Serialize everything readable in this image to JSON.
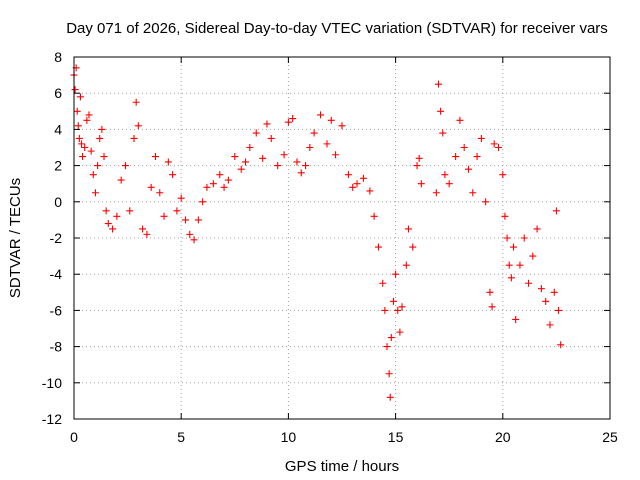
{
  "chart_data": {
    "type": "scatter",
    "title": "Day 071 of 2026, Sidereal Day-to-day VTEC variation (SDTVAR) for receiver vars",
    "xlabel": "GPS time / hours",
    "ylabel": "SDTVAR / TECUs",
    "xlim": [
      0,
      25
    ],
    "ylim": [
      -12,
      8
    ],
    "xticks": [
      0,
      5,
      10,
      15,
      20,
      25
    ],
    "yticks": [
      -12,
      -10,
      -8,
      -6,
      -4,
      -2,
      0,
      2,
      4,
      6,
      8
    ],
    "grid": true,
    "legend": "none",
    "marker": "plus",
    "color": "#ff0000",
    "series": [
      {
        "name": "SDTVAR",
        "points": [
          [
            0.0,
            7.0
          ],
          [
            0.05,
            6.2
          ],
          [
            0.1,
            7.4
          ],
          [
            0.15,
            5.0
          ],
          [
            0.2,
            4.2
          ],
          [
            0.25,
            3.5
          ],
          [
            0.3,
            5.8
          ],
          [
            0.35,
            3.2
          ],
          [
            0.4,
            2.5
          ],
          [
            0.5,
            3.0
          ],
          [
            0.6,
            4.5
          ],
          [
            0.7,
            4.8
          ],
          [
            0.8,
            2.8
          ],
          [
            0.9,
            1.5
          ],
          [
            1.0,
            0.5
          ],
          [
            1.1,
            2.0
          ],
          [
            1.2,
            3.5
          ],
          [
            1.3,
            4.0
          ],
          [
            1.4,
            2.5
          ],
          [
            1.5,
            -0.5
          ],
          [
            1.6,
            -1.2
          ],
          [
            1.8,
            -1.5
          ],
          [
            2.0,
            -0.8
          ],
          [
            2.2,
            1.2
          ],
          [
            2.4,
            2.0
          ],
          [
            2.6,
            -0.5
          ],
          [
            2.8,
            3.5
          ],
          [
            2.9,
            5.5
          ],
          [
            3.0,
            4.2
          ],
          [
            3.2,
            -1.5
          ],
          [
            3.4,
            -1.8
          ],
          [
            3.6,
            0.8
          ],
          [
            3.8,
            2.5
          ],
          [
            4.0,
            0.5
          ],
          [
            4.2,
            -0.8
          ],
          [
            4.4,
            2.2
          ],
          [
            4.6,
            1.5
          ],
          [
            4.8,
            -0.5
          ],
          [
            5.0,
            0.2
          ],
          [
            5.2,
            -1.0
          ],
          [
            5.4,
            -1.8
          ],
          [
            5.6,
            -2.1
          ],
          [
            5.8,
            -1.0
          ],
          [
            6.0,
            0.0
          ],
          [
            6.2,
            0.8
          ],
          [
            6.5,
            1.0
          ],
          [
            6.8,
            1.5
          ],
          [
            7.0,
            0.8
          ],
          [
            7.2,
            1.2
          ],
          [
            7.5,
            2.5
          ],
          [
            7.8,
            1.8
          ],
          [
            8.0,
            2.2
          ],
          [
            8.2,
            3.0
          ],
          [
            8.5,
            3.8
          ],
          [
            8.8,
            2.4
          ],
          [
            9.0,
            4.3
          ],
          [
            9.2,
            3.5
          ],
          [
            9.5,
            2.0
          ],
          [
            9.8,
            2.6
          ],
          [
            10.0,
            4.4
          ],
          [
            10.2,
            4.6
          ],
          [
            10.4,
            2.2
          ],
          [
            10.6,
            1.6
          ],
          [
            10.8,
            2.0
          ],
          [
            11.0,
            3.0
          ],
          [
            11.2,
            3.8
          ],
          [
            11.5,
            4.8
          ],
          [
            11.8,
            3.2
          ],
          [
            12.0,
            4.5
          ],
          [
            12.2,
            2.6
          ],
          [
            12.5,
            4.2
          ],
          [
            12.8,
            1.5
          ],
          [
            13.0,
            0.8
          ],
          [
            13.2,
            1.0
          ],
          [
            13.5,
            1.3
          ],
          [
            13.8,
            0.6
          ],
          [
            14.0,
            -0.8
          ],
          [
            14.2,
            -2.5
          ],
          [
            14.4,
            -4.5
          ],
          [
            14.5,
            -6.0
          ],
          [
            14.6,
            -8.0
          ],
          [
            14.7,
            -9.5
          ],
          [
            14.75,
            -10.8
          ],
          [
            14.8,
            -7.5
          ],
          [
            14.9,
            -5.5
          ],
          [
            15.0,
            -4.0
          ],
          [
            15.1,
            -6.0
          ],
          [
            15.2,
            -7.2
          ],
          [
            15.3,
            -5.8
          ],
          [
            15.5,
            -3.5
          ],
          [
            15.6,
            -1.5
          ],
          [
            15.8,
            -2.5
          ],
          [
            16.0,
            2.0
          ],
          [
            16.1,
            2.4
          ],
          [
            16.2,
            1.0
          ],
          [
            16.9,
            0.5
          ],
          [
            17.0,
            6.5
          ],
          [
            17.1,
            5.0
          ],
          [
            17.2,
            3.8
          ],
          [
            17.3,
            1.5
          ],
          [
            17.5,
            1.0
          ],
          [
            17.8,
            2.5
          ],
          [
            18.0,
            4.5
          ],
          [
            18.2,
            3.0
          ],
          [
            18.4,
            1.8
          ],
          [
            18.6,
            0.5
          ],
          [
            18.8,
            2.5
          ],
          [
            19.0,
            3.5
          ],
          [
            19.2,
            0.0
          ],
          [
            19.4,
            -5.0
          ],
          [
            19.5,
            -5.8
          ],
          [
            19.6,
            3.2
          ],
          [
            19.8,
            3.0
          ],
          [
            20.0,
            1.5
          ],
          [
            20.1,
            -0.8
          ],
          [
            20.2,
            -2.0
          ],
          [
            20.3,
            -3.5
          ],
          [
            20.4,
            -4.2
          ],
          [
            20.5,
            -2.5
          ],
          [
            20.6,
            -6.5
          ],
          [
            20.8,
            -3.5
          ],
          [
            21.0,
            -2.0
          ],
          [
            21.2,
            -4.5
          ],
          [
            21.4,
            -3.0
          ],
          [
            21.6,
            -1.5
          ],
          [
            21.8,
            -4.8
          ],
          [
            22.0,
            -5.5
          ],
          [
            22.2,
            -6.8
          ],
          [
            22.4,
            -5.0
          ],
          [
            22.5,
            -0.5
          ],
          [
            22.6,
            -6.0
          ],
          [
            22.7,
            -7.9
          ]
        ]
      }
    ]
  }
}
